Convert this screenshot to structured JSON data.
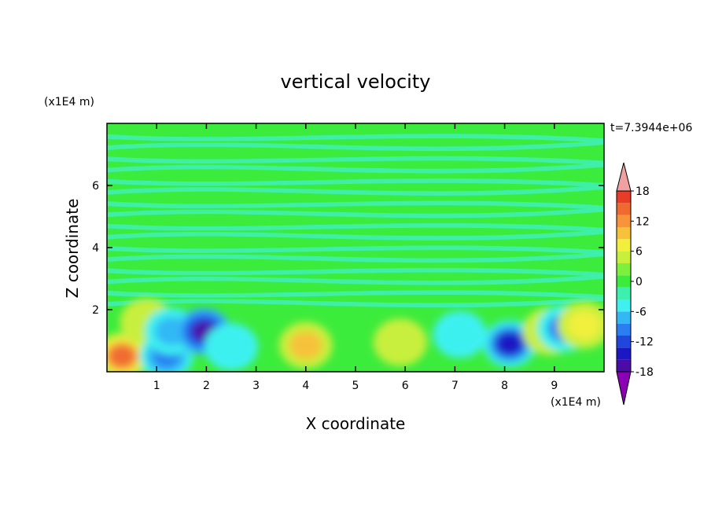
{
  "chart_data": {
    "type": "heatmap",
    "title": "vertical velocity",
    "xlabel": "X coordinate",
    "ylabel": "Z coordinate",
    "x_unit_label": "(x1E4 m)",
    "y_unit_label": "(x1E4 m)",
    "time_label": "t=7.3944e+06",
    "xlim": [
      0,
      10
    ],
    "ylim": [
      0,
      8
    ],
    "x_ticks": [
      1,
      2,
      3,
      4,
      5,
      6,
      7,
      8,
      9
    ],
    "y_ticks": [
      2,
      4,
      6
    ],
    "colorbar": {
      "ticks": [
        18,
        12,
        6,
        0,
        -6,
        -12,
        -18
      ],
      "range": [
        -21,
        21
      ],
      "colors": [
        "#8b00b4",
        "#4b0ba6",
        "#1b17c2",
        "#2046dc",
        "#2a7ef2",
        "#33b8f5",
        "#3ef0f0",
        "#3ef0b0",
        "#3cec3c",
        "#7df03c",
        "#c8ef3c",
        "#f0f03c",
        "#f7c23a",
        "#f7943a",
        "#ef6a30",
        "#e83c26",
        "#f0a0a0"
      ]
    },
    "background_level": 0,
    "features": [
      {
        "x": 0.3,
        "z": 0.5,
        "value": 14
      },
      {
        "x": 0.8,
        "z": 1.6,
        "value": 5
      },
      {
        "x": 1.2,
        "z": 0.5,
        "value": -11
      },
      {
        "x": 1.3,
        "z": 1.3,
        "value": -8
      },
      {
        "x": 1.95,
        "z": 1.3,
        "value": -17
      },
      {
        "x": 2.5,
        "z": 0.8,
        "value": -5
      },
      {
        "x": 4.0,
        "z": 0.85,
        "value": 9
      },
      {
        "x": 5.9,
        "z": 0.95,
        "value": 5
      },
      {
        "x": 7.1,
        "z": 1.2,
        "value": -4
      },
      {
        "x": 8.1,
        "z": 0.9,
        "value": -14
      },
      {
        "x": 8.9,
        "z": 1.3,
        "value": 4
      },
      {
        "x": 9.2,
        "z": 1.4,
        "value": -9
      },
      {
        "x": 9.6,
        "z": 1.5,
        "value": 7
      }
    ]
  }
}
